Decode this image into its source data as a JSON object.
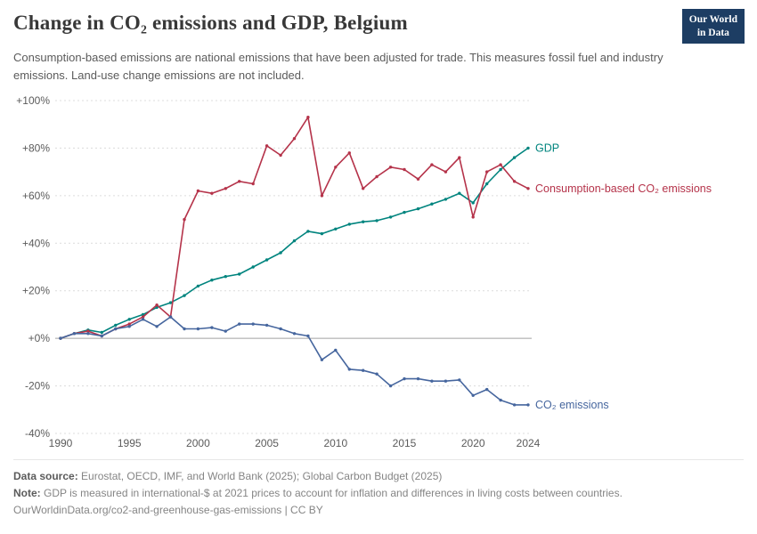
{
  "header": {
    "title": "Change in CO₂ emissions and GDP, Belgium",
    "subtitle": "Consumption-based emissions are national emissions that have been adjusted for trade. This measures fossil fuel and industry emissions. Land-use change emissions are not included.",
    "logo": {
      "line1": "Our World",
      "line2": "in Data",
      "bg_color": "#1d3d63"
    }
  },
  "chart_data": {
    "type": "line",
    "title": "Change in CO₂ emissions and GDP, Belgium",
    "unit": "% change since 1990",
    "grid": "horizontal-dashed",
    "legend_position": "line-end-labels",
    "x": [
      1990,
      1991,
      1992,
      1993,
      1994,
      1995,
      1996,
      1997,
      1998,
      1999,
      2000,
      2001,
      2002,
      2003,
      2004,
      2005,
      2006,
      2007,
      2008,
      2009,
      2010,
      2011,
      2012,
      2013,
      2014,
      2015,
      2016,
      2017,
      2018,
      2019,
      2020,
      2021,
      2022,
      2023,
      2024
    ],
    "series": [
      {
        "id": "gdp",
        "name": "GDP",
        "color": "#00847e",
        "values": [
          0,
          2,
          3.5,
          2.5,
          5.5,
          8,
          10,
          13,
          15,
          18,
          22,
          24.5,
          26,
          27,
          30,
          33,
          36,
          41,
          45,
          44,
          46,
          48,
          49,
          49.5,
          51,
          53,
          54.5,
          56.5,
          58.5,
          61,
          57,
          65,
          71,
          76,
          80
        ]
      },
      {
        "id": "consumption-co2",
        "name": "Consumption-based CO₂ emissions",
        "color": "#b5334a",
        "values": [
          0,
          2,
          3,
          1,
          4,
          6,
          9,
          14,
          9,
          50,
          62,
          61,
          63,
          66,
          65,
          81,
          77,
          84,
          93,
          60,
          72,
          78,
          63,
          68,
          72,
          71,
          67,
          73,
          70,
          76,
          51,
          70,
          73,
          66,
          63
        ]
      },
      {
        "id": "co2",
        "name": "CO₂ emissions",
        "color": "#46669e",
        "values": [
          0,
          2,
          2,
          1,
          4,
          5,
          8,
          5,
          9,
          4,
          4,
          4.5,
          3,
          6,
          6,
          5.5,
          4,
          2,
          1,
          -9,
          -5,
          -13,
          -13.5,
          -15,
          -20,
          -17,
          -17,
          -18,
          -18,
          -17.5,
          -24,
          -21.5,
          -26,
          -28,
          -28
        ]
      }
    ],
    "ylim": [
      -40,
      100
    ],
    "yticks": [
      -40,
      -20,
      0,
      20,
      40,
      60,
      80,
      100
    ],
    "ytick_labels": [
      "-40%",
      "-20%",
      "+0%",
      "+20%",
      "+40%",
      "+60%",
      "+80%",
      "+100%"
    ],
    "xticks": [
      1990,
      1995,
      2000,
      2005,
      2010,
      2015,
      2020,
      2024
    ]
  },
  "footer": {
    "source_label": "Data source:",
    "source": "Eurostat, OECD, IMF, and World Bank (2025); Global Carbon Budget (2025)",
    "note_label": "Note:",
    "note": "GDP is measured in international-$ at 2021 prices to account for inflation and differences in living costs between countries.",
    "url": "OurWorldinData.org/co2-and-greenhouse-gas-emissions | CC BY"
  }
}
